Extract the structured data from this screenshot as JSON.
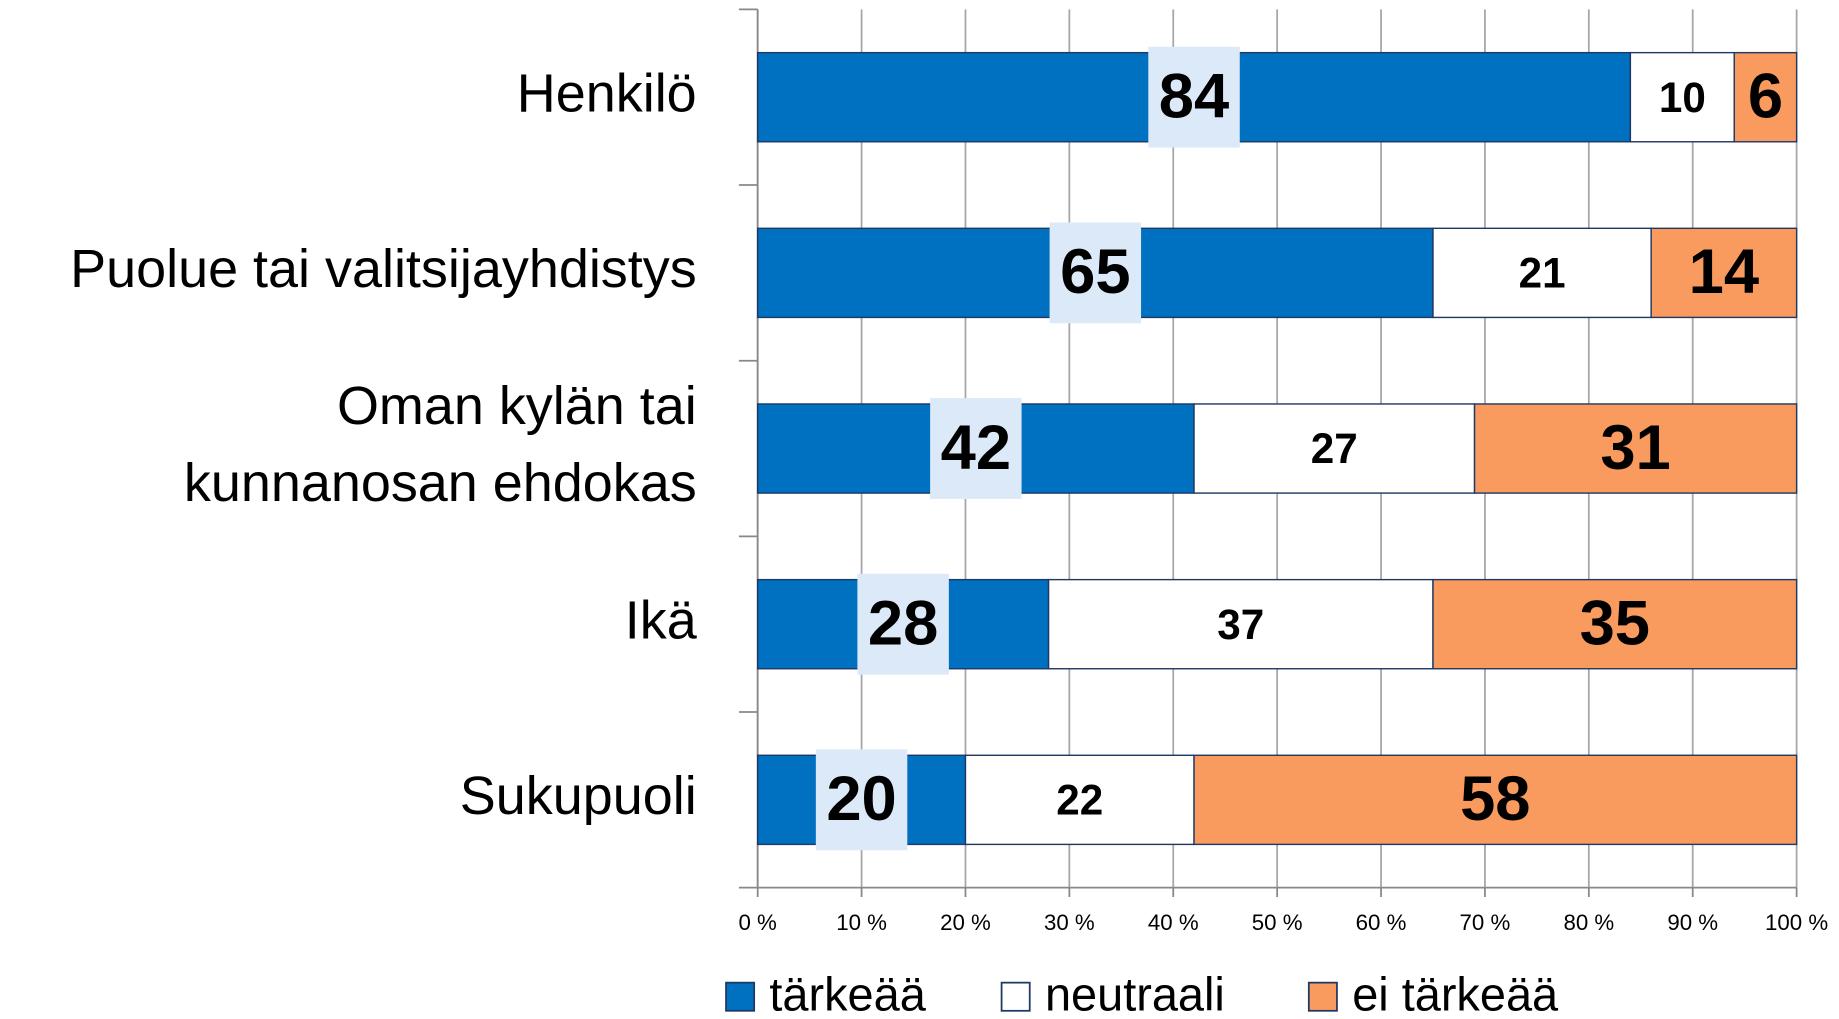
{
  "chart_data": {
    "type": "stacked-barh",
    "categories": [
      "Henkilö",
      "Puolue tai valitsijayhdistys",
      "Oman kylän tai\nkunnanosan ehdokas",
      "Ikä",
      "Sukupuoli"
    ],
    "series": [
      {
        "name": "tärkeää",
        "color": "#0070c0",
        "values": [
          84,
          65,
          42,
          28,
          20
        ]
      },
      {
        "name": "neutraali",
        "color": "#ffffff",
        "values": [
          10,
          21,
          27,
          37,
          22
        ]
      },
      {
        "name": "ei tärkeää",
        "color": "#f99a5e",
        "values": [
          6,
          14,
          31,
          35,
          58
        ]
      }
    ],
    "xlim": [
      0,
      100
    ],
    "xticks": [
      {
        "value": 0,
        "label": "0 %"
      },
      {
        "value": 10,
        "label": "10 %"
      },
      {
        "value": 20,
        "label": "20 %"
      },
      {
        "value": 30,
        "label": "30 %"
      },
      {
        "value": 40,
        "label": "40 %"
      },
      {
        "value": 50,
        "label": "50 %"
      },
      {
        "value": 60,
        "label": "60 %"
      },
      {
        "value": 70,
        "label": "70 %"
      },
      {
        "value": 80,
        "label": "80 %"
      },
      {
        "value": 90,
        "label": "90 %"
      },
      {
        "value": 100,
        "label": "100 %"
      }
    ],
    "grid": true
  }
}
